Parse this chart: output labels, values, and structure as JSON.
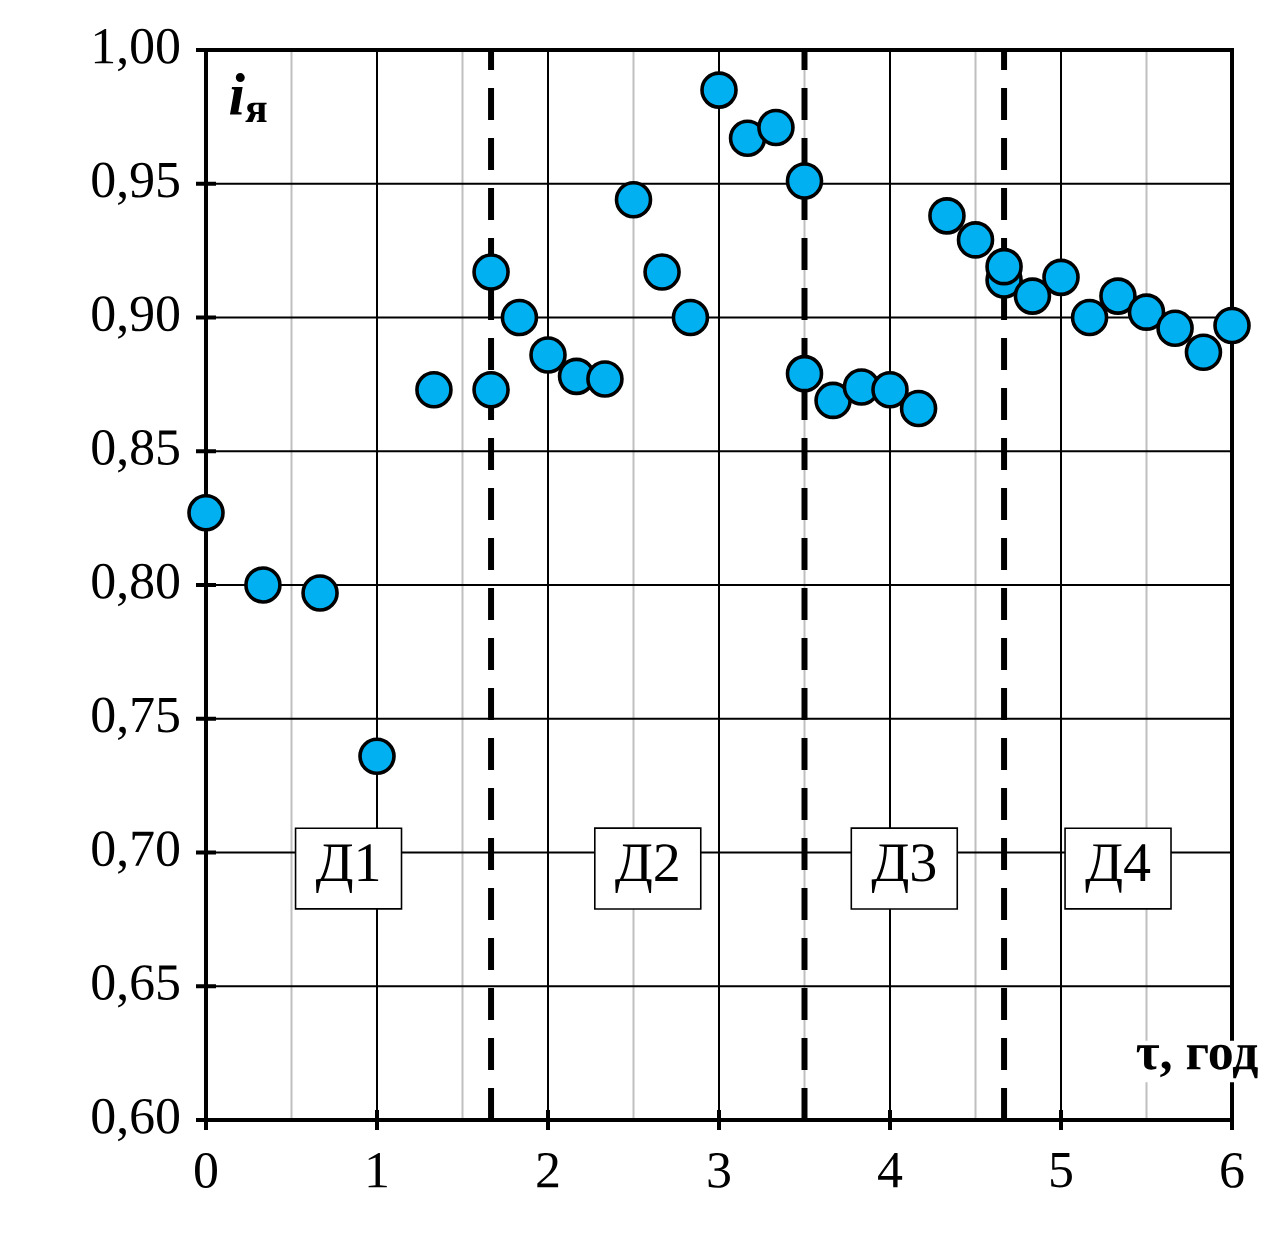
{
  "chart_data": {
    "type": "scatter",
    "xlabel": "τ, год",
    "ylabel": "*i*$_{я}$",
    "x": [
      0,
      0.333,
      0.667,
      1.0,
      1.333,
      1.667,
      1.667,
      1.833,
      2.0,
      2.167,
      2.333,
      2.5,
      2.667,
      2.833,
      3.0,
      3.167,
      3.333,
      3.5,
      3.5,
      3.667,
      3.833,
      4.0,
      4.167,
      4.333,
      4.5,
      4.667,
      4.667,
      4.833,
      5.0,
      5.167,
      5.333,
      5.5,
      5.667,
      5.833,
      6.0
    ],
    "series": [
      {
        "color": "#00b0f0",
        "values": [
          0.827,
          0.8,
          0.797,
          0.736,
          0.873,
          0.873,
          0.917,
          0.9,
          0.886,
          0.878,
          0.877,
          0.944,
          0.917,
          0.9,
          0.985,
          0.967,
          0.971,
          0.951,
          0.879,
          0.869,
          0.874,
          0.873,
          0.866,
          0.938,
          0.929,
          0.914,
          0.919,
          0.908,
          0.915,
          0.9,
          0.908,
          0.902,
          0.896,
          0.887,
          0.897
        ]
      }
    ],
    "xlim": [
      0,
      6
    ],
    "xticks": [
      0,
      1,
      2,
      3,
      4,
      5,
      6
    ],
    "ylim": [
      0.6,
      1.0
    ],
    "yticks": [
      {
        "value": 0.6,
        "label": "0,60"
      },
      {
        "value": 0.65,
        "label": "0,65"
      },
      {
        "value": 0.7,
        "label": "0,70"
      },
      {
        "value": 0.75,
        "label": "0,75"
      },
      {
        "value": 0.8,
        "label": "0,80"
      },
      {
        "value": 0.85,
        "label": "0,85"
      },
      {
        "value": 0.9,
        "label": "0,90"
      },
      {
        "value": 0.95,
        "label": "0,95"
      },
      {
        "value": 1.0,
        "label": "1,00"
      }
    ],
    "ref_lines": [
      {
        "axis": "x",
        "value": 1.667,
        "line_style": "dashed",
        "color": "#000000"
      },
      {
        "axis": "x",
        "value": 3.5,
        "line_style": "dashed",
        "color": "#000000"
      },
      {
        "axis": "x",
        "value": 4.667,
        "line_style": "dashed",
        "color": "#000000"
      }
    ],
    "annotations": [
      "Д1",
      "Д2",
      "Д3",
      "Д4"
    ],
    "grid": true,
    "marker": "circle"
  }
}
